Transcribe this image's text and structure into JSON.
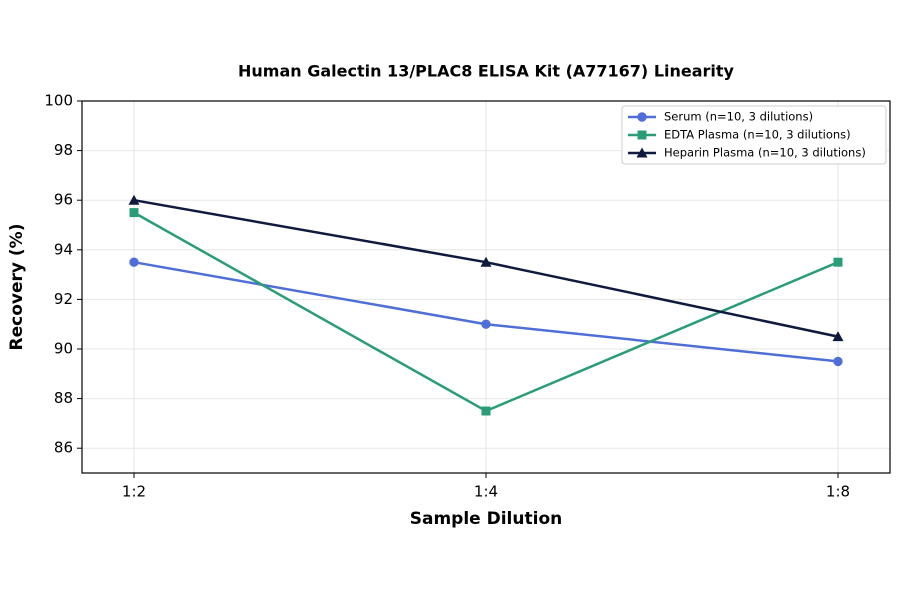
{
  "chart_data": {
    "type": "line",
    "title": "Human Galectin 13/PLAC8 ELISA Kit (A77167) Linearity",
    "x_label": "Sample Dilution",
    "y_label": "Recovery (%)",
    "categories": [
      "1:2",
      "1:4",
      "1:8"
    ],
    "series": [
      {
        "name": "Serum (n=10, 3 dilutions)",
        "color": "#4f6fd6",
        "marker": "circle",
        "values": [
          93.5,
          91,
          89.5
        ]
      },
      {
        "name": "EDTA Plasma (n=10, 3 dilutions)",
        "color": "#2a9d78",
        "marker": "square",
        "values": [
          95.5,
          87.5,
          93.5
        ]
      },
      {
        "name": "Heparin Plasma (n=10, 3 dilutions)",
        "color": "#0f1a3c",
        "marker": "triangle",
        "values": [
          96,
          93.5,
          90.5
        ]
      }
    ],
    "ylim": [
      85,
      100
    ],
    "yticks": [
      86,
      88,
      90,
      92,
      94,
      96,
      98,
      100
    ],
    "grid": true,
    "legend": "upper right"
  }
}
